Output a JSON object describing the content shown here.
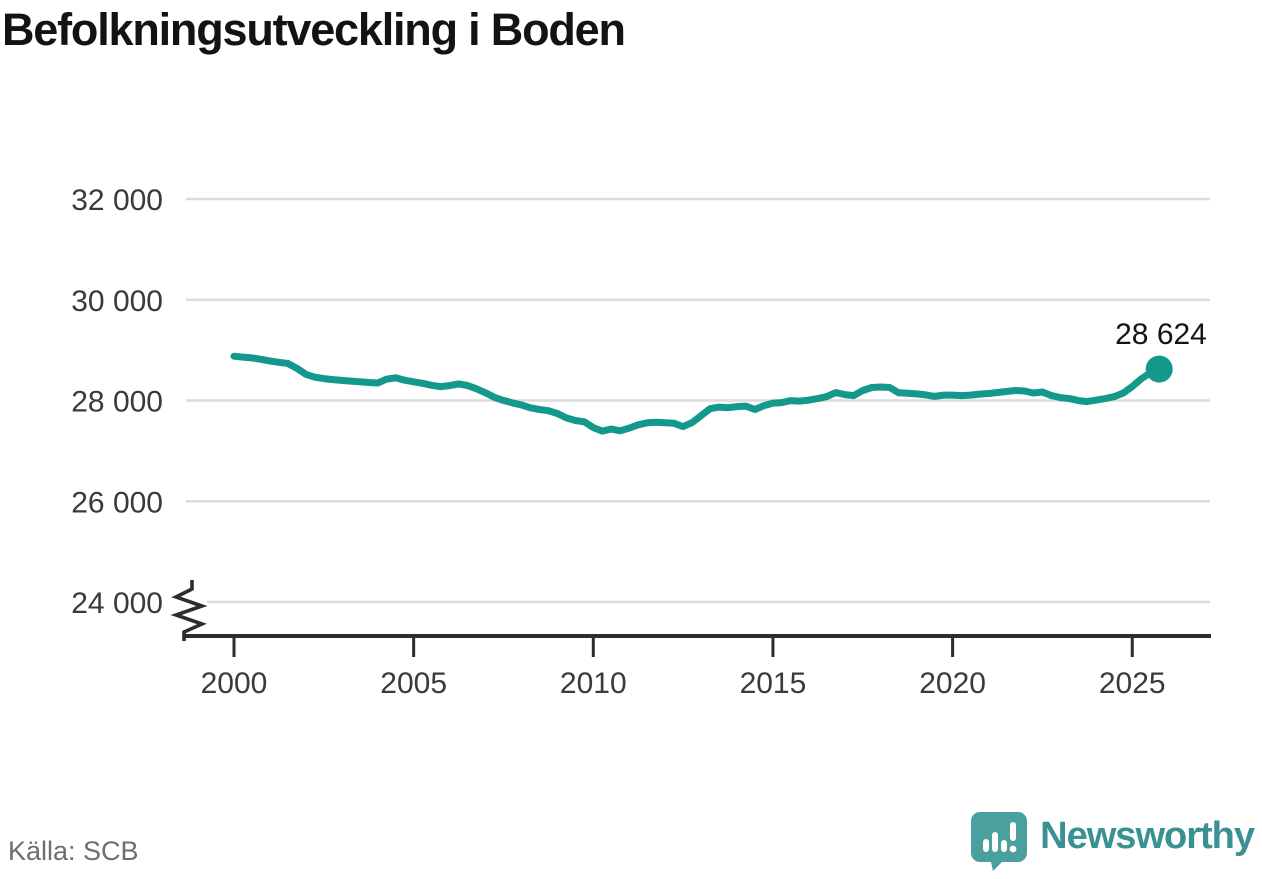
{
  "title": "Befolkningsutveckling i Boden",
  "source": "Källa: SCB",
  "branding": {
    "name": "Newsworthy",
    "icon": "newsworthy-speech-bubble-bar-chart-icon",
    "icon_color": "#4aa09e",
    "icon_glyph_color": "#ffffff",
    "text_color": "#3a9192"
  },
  "colors": {
    "line": "#13998b",
    "end_dot": "#13998b",
    "grid": "#dcdcdc",
    "axis": "#2d2d2d",
    "tick_label": "#3a3a3a",
    "annotation": "#141414",
    "title": "#131313",
    "source_text": "#6d6d73"
  },
  "chart_data": {
    "type": "line",
    "title": "Befolkningsutveckling i Boden",
    "xlabel": "",
    "ylabel": "",
    "legend": "none",
    "grid": "horizontal",
    "y_axis_break": true,
    "x_ticks": [
      2000,
      2005,
      2010,
      2015,
      2020,
      2025
    ],
    "y_ticks": [
      {
        "value": 32000,
        "label": "32 000"
      },
      {
        "value": 30000,
        "label": "30 000"
      },
      {
        "value": 28000,
        "label": "28 000"
      },
      {
        "value": 26000,
        "label": "26 000"
      },
      {
        "value": 24000,
        "label": "24 000"
      }
    ],
    "ylim_displayed": [
      23500,
      32600
    ],
    "xlim": [
      1998.7,
      2027.2
    ],
    "series": [
      {
        "name": "Befolkning i Boden",
        "x": [
          2000.0,
          2000.25,
          2000.5,
          2000.75,
          2001.0,
          2001.25,
          2001.5,
          2001.75,
          2002.0,
          2002.25,
          2002.5,
          2002.75,
          2003.0,
          2003.25,
          2003.5,
          2003.75,
          2004.0,
          2004.25,
          2004.5,
          2004.75,
          2005.0,
          2005.25,
          2005.5,
          2005.75,
          2006.0,
          2006.25,
          2006.5,
          2006.75,
          2007.0,
          2007.25,
          2007.5,
          2007.75,
          2008.0,
          2008.25,
          2008.5,
          2008.75,
          2009.0,
          2009.25,
          2009.5,
          2009.75,
          2010.0,
          2010.25,
          2010.5,
          2010.75,
          2011.0,
          2011.25,
          2011.5,
          2011.75,
          2012.0,
          2012.25,
          2012.5,
          2012.75,
          2013.0,
          2013.25,
          2013.5,
          2013.75,
          2014.0,
          2014.25,
          2014.5,
          2014.75,
          2015.0,
          2015.25,
          2015.5,
          2015.75,
          2016.0,
          2016.25,
          2016.5,
          2016.75,
          2017.0,
          2017.25,
          2017.5,
          2017.75,
          2018.0,
          2018.25,
          2018.5,
          2018.75,
          2019.0,
          2019.25,
          2019.5,
          2019.75,
          2020.0,
          2020.25,
          2020.5,
          2020.75,
          2021.0,
          2021.25,
          2021.5,
          2021.75,
          2022.0,
          2022.25,
          2022.5,
          2022.75,
          2023.0,
          2023.25,
          2023.5,
          2023.75,
          2024.0,
          2024.25,
          2024.5,
          2024.75,
          2025.0,
          2025.25,
          2025.5,
          2025.75
        ],
        "values": [
          28880,
          28862,
          28845,
          28818,
          28785,
          28758,
          28735,
          28640,
          28520,
          28462,
          28435,
          28415,
          28400,
          28385,
          28372,
          28358,
          28348,
          28425,
          28450,
          28402,
          28372,
          28342,
          28302,
          28275,
          28295,
          28330,
          28298,
          28232,
          28152,
          28062,
          28002,
          27952,
          27912,
          27855,
          27822,
          27798,
          27742,
          27655,
          27602,
          27578,
          27462,
          27392,
          27432,
          27398,
          27452,
          27518,
          27558,
          27568,
          27560,
          27548,
          27482,
          27562,
          27700,
          27838,
          27868,
          27858,
          27878,
          27888,
          27822,
          27898,
          27948,
          27958,
          27998,
          27988,
          28008,
          28038,
          28078,
          28158,
          28118,
          28098,
          28198,
          28258,
          28268,
          28258,
          28152,
          28142,
          28132,
          28112,
          28082,
          28108,
          28108,
          28098,
          28108,
          28128,
          28138,
          28158,
          28178,
          28198,
          28188,
          28148,
          28168,
          28098,
          28058,
          28038,
          27998,
          27978,
          28008,
          28038,
          28078,
          28148,
          28278,
          28428,
          28548,
          28624
        ]
      }
    ],
    "end_point": {
      "x": 2025.75,
      "value": 28624,
      "label": "28 624"
    }
  }
}
